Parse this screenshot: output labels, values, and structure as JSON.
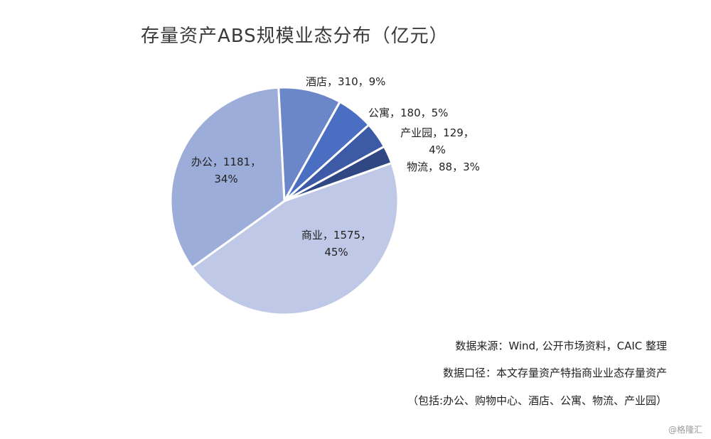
{
  "chart_data": {
    "type": "pie",
    "title": "存量资产ABS规模业态分布（亿元）",
    "slices": [
      {
        "name": "酒店",
        "value": 310,
        "pct_label": "9%",
        "label_lines": [
          "酒店，310，9%"
        ],
        "color": "#6b86c9"
      },
      {
        "name": "公寓",
        "value": 180,
        "pct_label": "5%",
        "label_lines": [
          "公寓，180，5%"
        ],
        "color": "#4a6fc2"
      },
      {
        "name": "产业园",
        "value": 129,
        "pct_label": "4%",
        "label_lines": [
          "产业园，129，",
          "4%"
        ],
        "color": "#3d5aa6"
      },
      {
        "name": "物流",
        "value": 88,
        "pct_label": "3%",
        "label_lines": [
          "物流，88，3%"
        ],
        "color": "#2f4783"
      },
      {
        "name": "商业",
        "value": 1575,
        "pct_label": "45%",
        "label_lines": [
          "商业，1575，",
          "45%"
        ],
        "color": "#bfc8e6"
      },
      {
        "name": "办公",
        "value": 1181,
        "pct_label": "34%",
        "label_lines": [
          "办公，1181，",
          "34%"
        ],
        "color": "#9dadd9"
      }
    ]
  },
  "notes": {
    "source": "数据来源：Wind, 公开市场资料，CAIC 整理",
    "scope": "数据口径：本文存量资产特指商业业态存量资产",
    "scope_detail": "（包括:办公、购物中心、酒店、公寓、物流、产业园）"
  },
  "watermark": "@格隆汇"
}
